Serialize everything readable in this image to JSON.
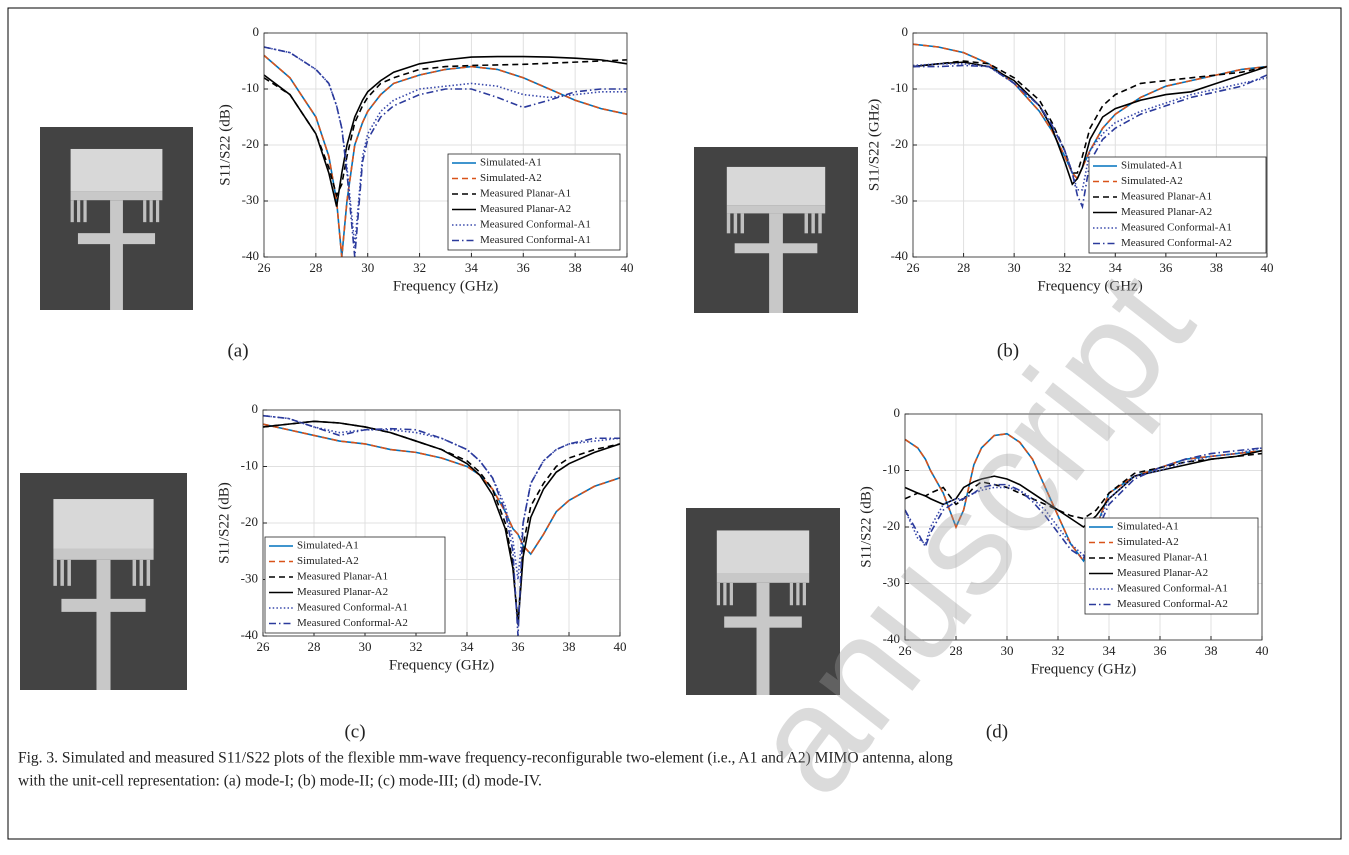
{
  "chart_data": [
    {
      "type": "line",
      "panel": "(a)",
      "xlabel": "Frequency (GHz)",
      "ylabel": "S11/S22 (dB)",
      "xlim": [
        26,
        40
      ],
      "ylim": [
        -40,
        0
      ],
      "xticks": [
        26,
        28,
        30,
        32,
        34,
        36,
        38,
        40
      ],
      "yticks": [
        -40,
        -30,
        -20,
        -10,
        0
      ],
      "grid": true,
      "legend": "lower right",
      "x": [
        26,
        27,
        28,
        28.5,
        28.8,
        29,
        29.2,
        29.5,
        29.8,
        30,
        30.5,
        31,
        32,
        33,
        34,
        35,
        36,
        37,
        38,
        39,
        40
      ],
      "series": [
        {
          "name": "Simulated-A1",
          "color": "#0072bd",
          "dash": "solid",
          "values": [
            -4,
            -8,
            -15,
            -22,
            -30,
            -40,
            -30,
            -20,
            -16,
            -14,
            -11,
            -9,
            -7.5,
            -6.5,
            -6,
            -6.5,
            -8,
            -10,
            -12,
            -13.5,
            -14.5
          ]
        },
        {
          "name": "Simulated-A2",
          "color": "#d95319",
          "dash": "dashed",
          "values": [
            -4,
            -8,
            -15,
            -22,
            -30,
            -40,
            -30,
            -20,
            -16,
            -14,
            -11,
            -9,
            -7.5,
            -6.5,
            -6,
            -6.5,
            -8,
            -10,
            -12,
            -13.5,
            -14.5
          ]
        },
        {
          "name": "Measured Planar-A1",
          "color": "#000000",
          "dash": "dashed",
          "values": [
            -8,
            -11,
            -18,
            -24,
            -29,
            -27,
            -22,
            -16,
            -13,
            -11.5,
            -9,
            -8,
            -6.5,
            -6,
            -5.8,
            -5.7,
            -5.6,
            -5.4,
            -5.2,
            -5,
            -4.8
          ]
        },
        {
          "name": "Measured Planar-A2",
          "color": "#000000",
          "dash": "solid",
          "values": [
            -7.5,
            -11,
            -18,
            -25,
            -31,
            -25,
            -20,
            -15,
            -12,
            -10.5,
            -8.5,
            -7,
            -5.5,
            -4.8,
            -4.3,
            -4.2,
            -4.2,
            -4.3,
            -4.5,
            -4.8,
            -5.5
          ]
        },
        {
          "name": "Measured Conformal-A1",
          "color": "#3949ab",
          "dash": "dotted",
          "values": [
            -2.5,
            -3.5,
            -6.5,
            -9,
            -13,
            -17,
            -24,
            -38,
            -22,
            -18,
            -14,
            -12,
            -10,
            -9.5,
            -9,
            -9.5,
            -11,
            -11.5,
            -11,
            -10.5,
            -10.5
          ]
        },
        {
          "name": "Measured Conformal-A1",
          "color": "#2b3a9c",
          "dash": "dashdot",
          "values": [
            -2.5,
            -3.5,
            -6.5,
            -9,
            -13,
            -17,
            -25,
            -40,
            -23,
            -19,
            -15,
            -13,
            -11,
            -10,
            -10,
            -11.5,
            -13.3,
            -12,
            -10.5,
            -10,
            -10
          ]
        }
      ]
    },
    {
      "type": "line",
      "panel": "(b)",
      "xlabel": "Frequency (GHz)",
      "ylabel": "S11/S22 (GHz)",
      "xlim": [
        26,
        40
      ],
      "ylim": [
        -40,
        0
      ],
      "xticks": [
        26,
        28,
        30,
        32,
        34,
        36,
        38,
        40
      ],
      "yticks": [
        -40,
        -30,
        -20,
        -10,
        0
      ],
      "grid": true,
      "legend": "lower right",
      "x": [
        26,
        27,
        28,
        29,
        30,
        31,
        31.5,
        32,
        32.3,
        32.5,
        32.7,
        33,
        33.5,
        34,
        35,
        36,
        37,
        38,
        39,
        40
      ],
      "series": [
        {
          "name": "Simulated-A1",
          "color": "#0072bd",
          "dash": "solid",
          "values": [
            -2,
            -2.5,
            -3.5,
            -5.5,
            -9,
            -14,
            -17.5,
            -22,
            -25,
            -26,
            -24,
            -21,
            -17,
            -14.5,
            -11.5,
            -9.5,
            -8.5,
            -7.5,
            -6.5,
            -6
          ]
        },
        {
          "name": "Simulated-A2",
          "color": "#d95319",
          "dash": "dashed",
          "values": [
            -2,
            -2.5,
            -3.5,
            -5.5,
            -9,
            -14,
            -17.5,
            -22,
            -25,
            -26,
            -24,
            -21,
            -17,
            -14.5,
            -11.5,
            -9.5,
            -8.5,
            -7.5,
            -6.5,
            -6
          ]
        },
        {
          "name": "Measured Planar-A1",
          "color": "#000000",
          "dash": "dashed",
          "values": [
            -6,
            -5.5,
            -5,
            -5.5,
            -8,
            -12,
            -16,
            -21,
            -25,
            -25,
            -22,
            -17,
            -13,
            -11,
            -9,
            -8.5,
            -8,
            -7.5,
            -7,
            -6
          ]
        },
        {
          "name": "Measured Planar-A2",
          "color": "#000000",
          "dash": "solid",
          "values": [
            -6,
            -5.5,
            -5.2,
            -6,
            -8.5,
            -13,
            -17,
            -23,
            -27,
            -26,
            -24,
            -19,
            -15,
            -13.5,
            -12,
            -11,
            -10.5,
            -9,
            -7.5,
            -6
          ]
        },
        {
          "name": "Measured Conformal-A1",
          "color": "#3949ab",
          "dash": "dotted",
          "values": [
            -5.8,
            -5.5,
            -5.5,
            -6,
            -9,
            -13,
            -16.5,
            -21,
            -25,
            -28,
            -28,
            -21,
            -18,
            -16,
            -14,
            -12.5,
            -11,
            -10,
            -9,
            -8
          ]
        },
        {
          "name": "Measured Conformal-A2",
          "color": "#2b3a9c",
          "dash": "dashdot",
          "values": [
            -6,
            -6,
            -5.8,
            -6,
            -9,
            -13,
            -16.5,
            -21,
            -25,
            -29,
            -31,
            -23,
            -19,
            -17,
            -14.5,
            -13,
            -11.5,
            -10.5,
            -9.5,
            -7.5
          ]
        }
      ]
    },
    {
      "type": "line",
      "panel": "(c)",
      "xlabel": "Frequency (GHz)",
      "ylabel": "S11/S22 (dB)",
      "xlim": [
        26,
        40
      ],
      "ylim": [
        -40,
        0
      ],
      "xticks": [
        26,
        28,
        30,
        32,
        34,
        36,
        38,
        40
      ],
      "yticks": [
        -40,
        -30,
        -20,
        -10,
        0
      ],
      "grid": true,
      "legend": "lower left",
      "x": [
        26,
        27,
        28,
        29,
        30,
        31,
        32,
        33,
        34,
        34.5,
        35,
        35.5,
        35.8,
        36,
        36.2,
        36.5,
        37,
        37.5,
        38,
        39,
        40
      ],
      "series": [
        {
          "name": "Simulated-A1",
          "color": "#0072bd",
          "dash": "solid",
          "values": [
            -2.5,
            -3.5,
            -4.5,
            -5.5,
            -6,
            -7,
            -7.5,
            -8.5,
            -10,
            -11.5,
            -14,
            -18,
            -21,
            -22,
            -24,
            -25.5,
            -22,
            -18,
            -16,
            -13.5,
            -12
          ]
        },
        {
          "name": "Simulated-A2",
          "color": "#d95319",
          "dash": "dashed",
          "values": [
            -2.5,
            -3.5,
            -4.5,
            -5.5,
            -6,
            -7,
            -7.5,
            -8.5,
            -10,
            -11.5,
            -14,
            -18,
            -21,
            -22,
            -24,
            -25.5,
            -22,
            -18,
            -16,
            -13.5,
            -12
          ]
        },
        {
          "name": "Measured Planar-A1",
          "color": "#000000",
          "dash": "dashed",
          "values": [
            -3,
            -2.5,
            -2,
            -2.3,
            -3,
            -4,
            -5.5,
            -7,
            -9,
            -11,
            -14,
            -20,
            -27,
            -38,
            -24,
            -17,
            -13,
            -10,
            -8.5,
            -7,
            -6
          ]
        },
        {
          "name": "Measured Planar-A2",
          "color": "#000000",
          "dash": "solid",
          "values": [
            -3,
            -2.5,
            -2,
            -2.3,
            -3,
            -4,
            -5.5,
            -7,
            -9.5,
            -11.5,
            -15,
            -21,
            -28,
            -38,
            -26,
            -19,
            -14,
            -11,
            -9.5,
            -7.5,
            -6
          ]
        },
        {
          "name": "Measured Conformal-A1",
          "color": "#3949ab",
          "dash": "dotted",
          "values": [
            -1,
            -1.5,
            -3,
            -4,
            -3.5,
            -3.5,
            -4,
            -5,
            -7,
            -9,
            -12,
            -17,
            -23,
            -30,
            -20,
            -13,
            -9,
            -7,
            -6,
            -5.5,
            -5
          ]
        },
        {
          "name": "Measured Conformal-A2",
          "color": "#2b3a9c",
          "dash": "dashdot",
          "values": [
            -1,
            -1.5,
            -3,
            -4.5,
            -3.5,
            -3.3,
            -3.5,
            -5,
            -7,
            -9,
            -12,
            -18,
            -25,
            -40,
            -20,
            -13,
            -9,
            -7,
            -6,
            -5,
            -5
          ]
        }
      ]
    },
    {
      "type": "line",
      "panel": "(d)",
      "xlabel": "Frequency (GHz)",
      "ylabel": "S11/S22 (dB)",
      "xlim": [
        26,
        40
      ],
      "ylim": [
        -40,
        0
      ],
      "xticks": [
        26,
        28,
        30,
        32,
        34,
        36,
        38,
        40
      ],
      "yticks": [
        -40,
        -30,
        -20,
        -10,
        0
      ],
      "grid": true,
      "legend": "lower right",
      "x": [
        26,
        26.5,
        26.8,
        27,
        27.5,
        28,
        28.3,
        28.7,
        29,
        29.5,
        30,
        30.5,
        31,
        31.5,
        32,
        32.5,
        33,
        33.5,
        34,
        35,
        36,
        37,
        38,
        39,
        40
      ],
      "series": [
        {
          "name": "Simulated-A1",
          "color": "#0072bd",
          "dash": "solid",
          "values": [
            -4.5,
            -6,
            -8,
            -10,
            -14,
            -20,
            -17,
            -9,
            -6,
            -3.8,
            -3.5,
            -5,
            -8,
            -13,
            -18,
            -23,
            -26,
            -20,
            -14,
            -11,
            -9.5,
            -8,
            -7.5,
            -7,
            -6.5
          ]
        },
        {
          "name": "Simulated-A2",
          "color": "#d95319",
          "dash": "dashed",
          "values": [
            -4.5,
            -6,
            -8,
            -10,
            -14,
            -20,
            -17,
            -9,
            -6,
            -3.8,
            -3.5,
            -5,
            -8,
            -13,
            -18,
            -23,
            -26,
            -20,
            -14,
            -11,
            -9.5,
            -8,
            -7.5,
            -7,
            -6.5
          ]
        },
        {
          "name": "Measured Planar-A1",
          "color": "#000000",
          "dash": "dashed",
          "values": [
            -15,
            -14,
            -14.5,
            -14,
            -13,
            -16,
            -15,
            -13,
            -12,
            -12.5,
            -13,
            -14,
            -15,
            -16,
            -17,
            -18,
            -18.5,
            -17,
            -14,
            -10.5,
            -9.5,
            -8.5,
            -8,
            -7.5,
            -7
          ]
        },
        {
          "name": "Measured Planar-A2",
          "color": "#000000",
          "dash": "solid",
          "values": [
            -13,
            -14,
            -14.5,
            -15,
            -16,
            -15,
            -13,
            -12,
            -11.5,
            -11,
            -11.5,
            -12.5,
            -14,
            -15.5,
            -17,
            -18.5,
            -20,
            -18,
            -15,
            -11,
            -10,
            -9,
            -8,
            -7.5,
            -6.5
          ]
        },
        {
          "name": "Measured Conformal-A1",
          "color": "#3949ab",
          "dash": "dotted",
          "values": [
            -17,
            -22,
            -23,
            -20,
            -16,
            -15,
            -15,
            -14,
            -13.5,
            -13,
            -13,
            -13.5,
            -15,
            -17,
            -20,
            -23,
            -25,
            -20,
            -15,
            -11,
            -10,
            -8.5,
            -7.5,
            -7,
            -6
          ]
        },
        {
          "name": "Measured Conformal-A2",
          "color": "#2b3a9c",
          "dash": "dashdot",
          "values": [
            -17,
            -21,
            -23.5,
            -21,
            -17,
            -15.5,
            -15,
            -14,
            -13,
            -12.5,
            -12.5,
            -13.5,
            -15.5,
            -18,
            -21,
            -24,
            -25.5,
            -21,
            -16,
            -11.5,
            -9.5,
            -8,
            -7,
            -6.5,
            -6
          ]
        }
      ]
    }
  ],
  "caption": [
    "Fig. 3. Simulated and measured S11/S22 plots of the flexible mm-wave frequency-reconfigurable two-element (i.e., A1 and A2) MIMO antenna, along",
    "with the unit-cell representation: (a) mode-I; (b) mode-II; (c) mode-III; (d) mode-IV."
  ],
  "watermark": "anuscript"
}
